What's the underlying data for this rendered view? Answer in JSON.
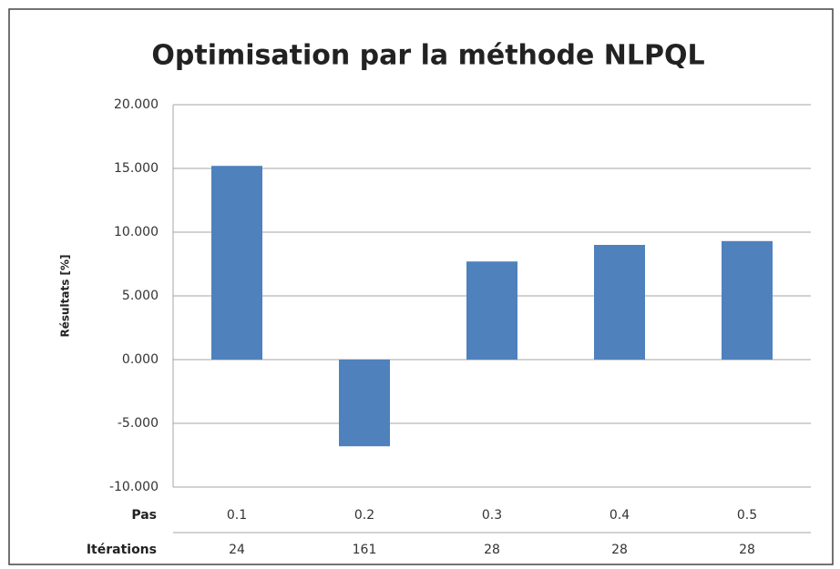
{
  "chart_data": {
    "type": "bar",
    "title": "Optimisation par la méthode NLPQL",
    "y_label": "Résultats [%]",
    "categories": [
      "0.1",
      "0.2",
      "0.3",
      "0.4",
      "0.5"
    ],
    "category_row_label": "Pas",
    "iterations_label": "Itérations",
    "iterations": [
      24,
      161,
      28,
      28,
      28
    ],
    "values": [
      15.2,
      -6.8,
      7.7,
      9.0,
      9.3
    ],
    "color": "#4f81bd",
    "ylim": [
      -10,
      20
    ],
    "yticks": [
      {
        "value": -10,
        "label": "-10.000"
      },
      {
        "value": -5,
        "label": "-5.000"
      },
      {
        "value": 0,
        "label": "0.000"
      },
      {
        "value": 5,
        "label": "5.000"
      },
      {
        "value": 10,
        "label": "10.000"
      },
      {
        "value": 15,
        "label": "15.000"
      },
      {
        "value": 20,
        "label": "20.000"
      }
    ],
    "grid": true
  }
}
